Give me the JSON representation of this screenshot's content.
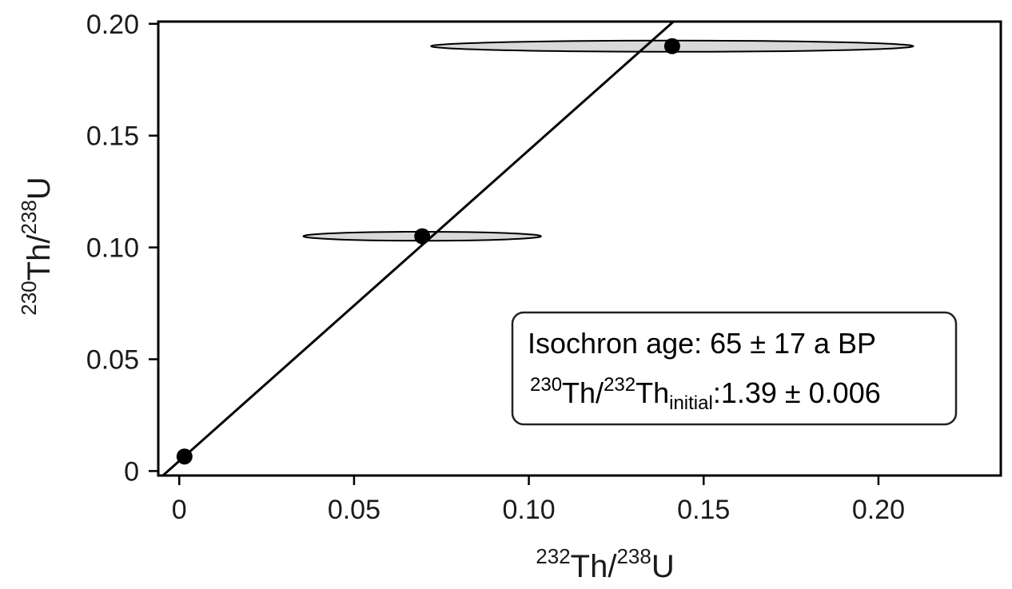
{
  "chart_data": {
    "type": "scatter",
    "title": "",
    "x_axis": {
      "label": {
        "sup": "232",
        "main": "Th/",
        "sup2": "238",
        "main2": "U"
      },
      "range": [
        -0.006,
        0.235
      ],
      "ticks": [
        0,
        0.05,
        0.1,
        0.15,
        0.2
      ],
      "tick_labels": [
        "0",
        "0.05",
        "0.10",
        "0.15",
        "0.20"
      ]
    },
    "y_axis": {
      "label": {
        "sup": "230",
        "main": "Th/",
        "sup2": "238",
        "main2": "U"
      },
      "range": [
        -0.002,
        0.201
      ],
      "ticks": [
        0,
        0.05,
        0.1,
        0.15,
        0.2
      ],
      "tick_labels": [
        "0",
        "0.05",
        "0.10",
        "0.15",
        "0.20"
      ]
    },
    "grid": false,
    "points": [
      {
        "x": 0.0015,
        "y": 0.0065,
        "x_err": 0.0,
        "y_err": 0.0
      },
      {
        "x": 0.0695,
        "y": 0.105,
        "x_err": 0.034,
        "y_err": 0.002
      },
      {
        "x": 0.141,
        "y": 0.19,
        "x_err": 0.069,
        "y_err": 0.0025
      }
    ],
    "isochron_line": {
      "slope": 1.39,
      "intercept": 0.0045
    },
    "annotation": {
      "line1": "Isochron age: 65 ± 17 a BP",
      "line2_sup1": "230",
      "line2_a": "Th/",
      "line2_sup2": "232",
      "line2_b": "Th",
      "line2_sub": "initial",
      "line2_c": ":1.39 ± 0.006"
    },
    "colors": {
      "ellipse_fill": "#d9d9d9",
      "stroke": "#000000",
      "point": "#000000"
    }
  }
}
